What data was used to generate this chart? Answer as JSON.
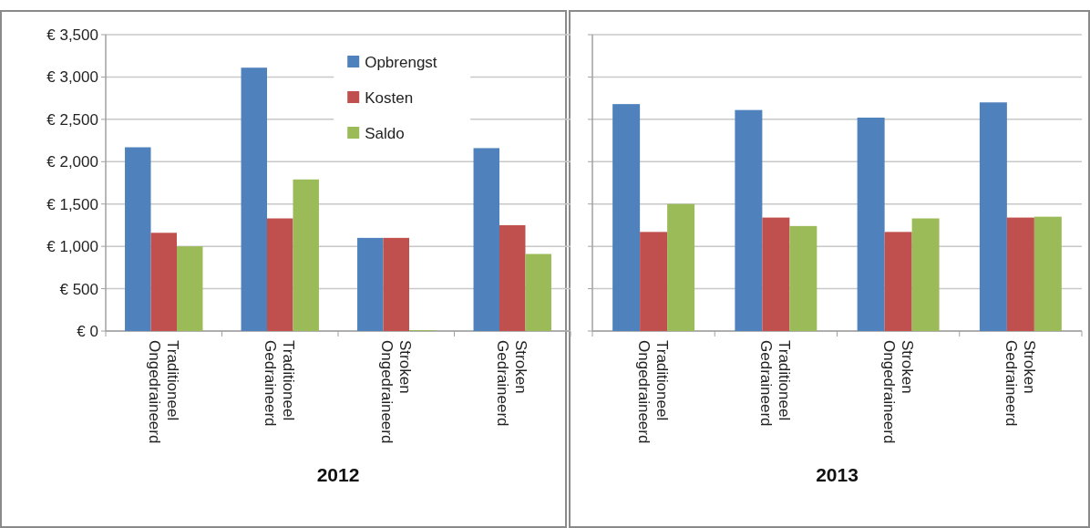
{
  "chart_data": [
    {
      "type": "bar",
      "xlabel": "2012",
      "categories": [
        "Traditioneel Ongedraineerd",
        "Traditioneel Gedraineerd",
        "Stroken Ongedraineerd",
        "Stroken Gedraineerd"
      ],
      "series": [
        {
          "name": "Opbrengst",
          "color": "#4f81bd",
          "values": [
            2170,
            3110,
            1100,
            2160
          ]
        },
        {
          "name": "Kosten",
          "color": "#c0504d",
          "values": [
            1160,
            1330,
            1100,
            1250
          ]
        },
        {
          "name": "Saldo",
          "color": "#9bbb59",
          "values": [
            1000,
            1790,
            10,
            910
          ]
        }
      ],
      "ylim": [
        0,
        3500
      ],
      "yticks": [
        {
          "value": 0,
          "label": "€ 0"
        },
        {
          "value": 500,
          "label": "€ 500"
        },
        {
          "value": 1000,
          "label": "€ 1,000"
        },
        {
          "value": 1500,
          "label": "€ 1,500"
        },
        {
          "value": 2000,
          "label": "€ 2,000"
        },
        {
          "value": 2500,
          "label": "€ 2,500"
        },
        {
          "value": 3000,
          "label": "€ 3,000"
        },
        {
          "value": 3500,
          "label": "€ 3,500"
        }
      ],
      "grid": "y",
      "legend": "top"
    },
    {
      "type": "bar",
      "xlabel": "2013",
      "categories": [
        "Traditioneel Ongedraineerd",
        "Traditioneel Gedraineerd",
        "Stroken Ongedraineerd",
        "Stroken Gedraineerd"
      ],
      "series": [
        {
          "color": "#4f81bd",
          "values": [
            2680,
            2610,
            2520,
            2700
          ]
        },
        {
          "color": "#c0504d",
          "values": [
            1170,
            1340,
            1170,
            1340
          ]
        },
        {
          "color": "#9bbb59",
          "values": [
            1500,
            1240,
            1330,
            1350
          ]
        }
      ],
      "ylim": [
        0,
        3500
      ],
      "yticks": [
        0,
        500,
        1000,
        1500,
        2000,
        2500,
        3000,
        3500
      ],
      "grid": "y",
      "tick_labels": "x"
    }
  ]
}
